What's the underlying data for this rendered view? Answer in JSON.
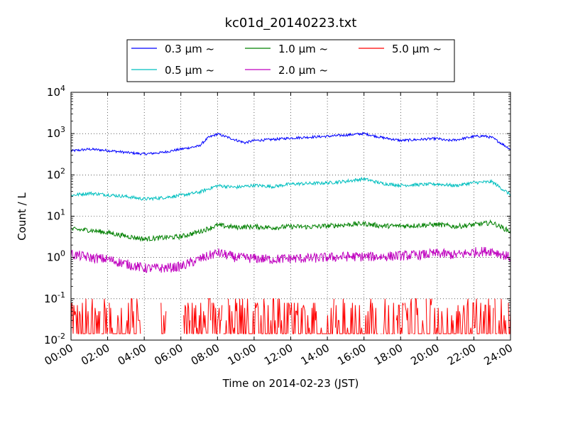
{
  "chart_data": {
    "type": "line",
    "title": "kc01d_20140223.txt",
    "xlabel": "Time on 2014-02-23 (JST)",
    "ylabel": "Count / L",
    "x_unit": "hour",
    "xlim": [
      0,
      24
    ],
    "ylim": [
      0.01,
      10000
    ],
    "y_scale": "log",
    "grid": true,
    "legend_position": "top-center",
    "x_tick_labels": [
      "00:00",
      "02:00",
      "04:00",
      "06:00",
      "08:00",
      "10:00",
      "12:00",
      "14:00",
      "16:00",
      "18:00",
      "20:00",
      "22:00",
      "24:00"
    ],
    "y_tick_labels": [
      {
        "base": "10",
        "exp": "-2"
      },
      {
        "base": "10",
        "exp": "-1"
      },
      {
        "base": "10",
        "exp": "0"
      },
      {
        "base": "10",
        "exp": "1"
      },
      {
        "base": "10",
        "exp": "2"
      },
      {
        "base": "10",
        "exp": "3"
      },
      {
        "base": "10",
        "exp": "4"
      }
    ],
    "series": [
      {
        "name": "0.3 μm ~",
        "color": "#0000ff",
        "x": [
          0,
          1,
          2,
          3,
          4,
          5,
          6,
          7,
          7.5,
          8,
          9,
          9.5,
          10,
          11,
          12,
          13,
          14,
          15,
          16,
          17,
          18,
          19,
          20,
          20.5,
          21,
          22,
          22.5,
          23,
          24
        ],
        "y": [
          380,
          420,
          390,
          350,
          320,
          350,
          420,
          500,
          800,
          980,
          700,
          600,
          680,
          720,
          780,
          820,
          860,
          920,
          1000,
          800,
          680,
          720,
          760,
          680,
          700,
          850,
          880,
          800,
          420
        ],
        "noise": 0.03
      },
      {
        "name": "0.5 μm ~",
        "color": "#00bfbf",
        "x": [
          0,
          1,
          2,
          3,
          4,
          5,
          6,
          7,
          8,
          9,
          10,
          11,
          12,
          13,
          14,
          15,
          16,
          17,
          18,
          19,
          20,
          21,
          22,
          23,
          24
        ],
        "y": [
          32,
          36,
          33,
          30,
          26,
          28,
          32,
          38,
          55,
          50,
          56,
          52,
          60,
          62,
          64,
          70,
          80,
          62,
          56,
          58,
          60,
          55,
          65,
          68,
          33
        ],
        "noise": 0.04
      },
      {
        "name": "1.0 μm ~",
        "color": "#008000",
        "x": [
          0,
          1,
          2,
          3,
          4,
          5,
          6,
          7,
          8,
          9,
          10,
          11,
          12,
          13,
          14,
          15,
          16,
          17,
          18,
          19,
          20,
          21,
          22,
          23,
          24
        ],
        "y": [
          4.8,
          4.6,
          4.0,
          3.3,
          2.8,
          3.0,
          3.2,
          4.2,
          6.0,
          5.4,
          5.6,
          5.3,
          5.6,
          5.5,
          5.8,
          6.2,
          6.6,
          5.8,
          5.8,
          6.0,
          6.3,
          5.6,
          6.2,
          7.0,
          4.2
        ],
        "noise": 0.06
      },
      {
        "name": "2.0 μm ~",
        "color": "#bf00bf",
        "x": [
          0,
          1,
          2,
          3,
          4,
          5,
          6,
          7,
          8,
          9,
          10,
          11,
          12,
          13,
          14,
          15,
          16,
          17,
          18,
          19,
          20,
          21,
          22,
          23,
          24
        ],
        "y": [
          1.2,
          1.0,
          0.9,
          0.7,
          0.55,
          0.55,
          0.6,
          0.9,
          1.3,
          1.0,
          0.95,
          0.9,
          0.95,
          0.95,
          1.0,
          1.05,
          1.05,
          1.05,
          1.1,
          1.15,
          1.25,
          1.15,
          1.35,
          1.45,
          1.0
        ],
        "noise": 0.12
      },
      {
        "name": "5.0 μm ~",
        "color": "#ff0000",
        "values_set": [
          0.0143,
          0.02,
          0.03,
          0.04,
          0.05,
          0.06,
          0.07,
          0.08,
          0.1
        ],
        "gaps": [
          [
            3.8,
            4.9
          ],
          [
            5.2,
            6.1
          ]
        ],
        "count": 620
      }
    ]
  }
}
